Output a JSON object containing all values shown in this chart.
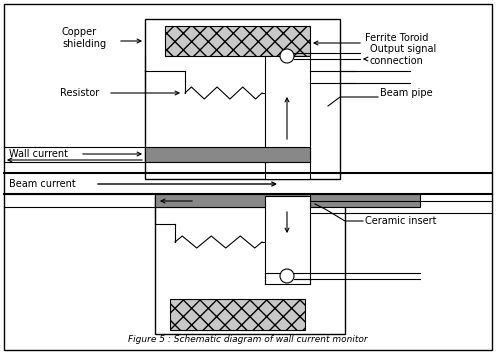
{
  "title": "Figure 5 : Schematic diagram of wall current monitor",
  "bg_color": "#ffffff",
  "border_color": "#000000",
  "line_color": "#000000",
  "text_color": "#000000",
  "labels": {
    "copper_shielding": "Copper\nshielding",
    "ferrite_toroid": "Ferrite Toroid",
    "output_signal": "Output signal\nconnection",
    "beam_pipe": "Beam pipe",
    "resistor": "Resistor",
    "wall_current": "Wall current",
    "beam_current": "Beam current",
    "ceramic_insert": "Ceramic insert"
  },
  "font_size": 7.0
}
